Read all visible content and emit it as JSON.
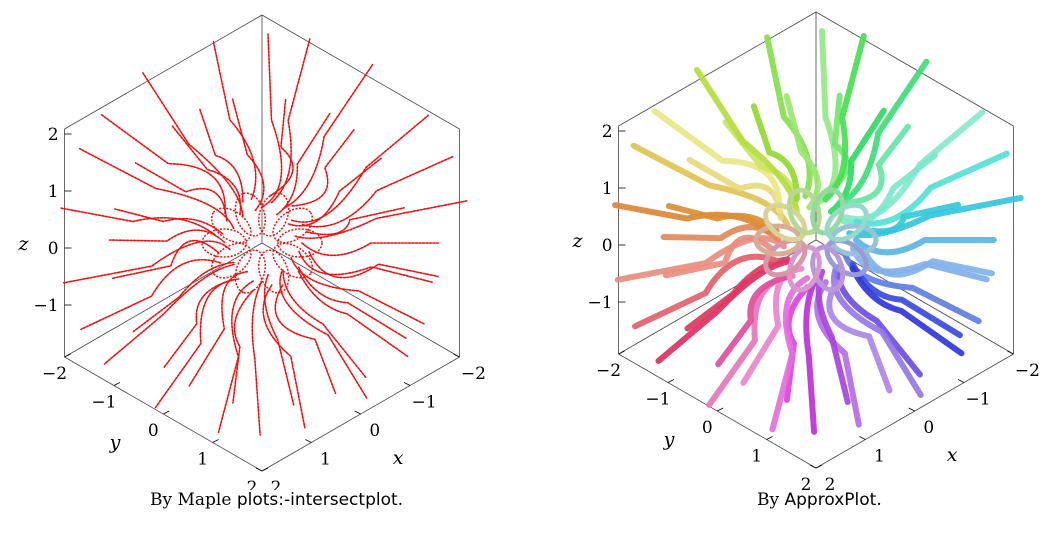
{
  "chart_data": [
    {
      "type": "3d-curve-plot",
      "caption_prefix": "By Maple ",
      "caption_code": "plots:-intersectplot",
      "caption_suffix": ".",
      "axes": {
        "x": {
          "label": "x",
          "ticks": [
            -2,
            -1,
            0,
            1,
            2
          ]
        },
        "y": {
          "label": "y",
          "ticks": [
            -2,
            -1,
            0,
            1,
            2
          ]
        },
        "z": {
          "label": "z",
          "ticks": [
            2,
            1,
            0,
            -1
          ]
        }
      },
      "ranges": {
        "x": [
          -2,
          2
        ],
        "y": [
          -2,
          2
        ],
        "z": [
          -2,
          2
        ]
      },
      "style": "dotted",
      "color": "#ee1111"
    },
    {
      "type": "3d-curve-plot",
      "caption_prefix": "By ",
      "caption_code": "ApproxPlot",
      "caption_suffix": ".",
      "axes": {
        "x": {
          "label": "x",
          "ticks": [
            -2,
            -1,
            0,
            1,
            2
          ]
        },
        "y": {
          "label": "y",
          "ticks": [
            -2,
            -1,
            0,
            1,
            2
          ]
        },
        "z": {
          "label": "z",
          "ticks": [
            2,
            1,
            0,
            -1
          ]
        }
      },
      "ranges": {
        "x": [
          -2,
          2
        ],
        "y": [
          -2,
          2
        ],
        "z": [
          -2,
          2
        ]
      },
      "style": "thick-tubes",
      "color": "rainbow"
    }
  ]
}
